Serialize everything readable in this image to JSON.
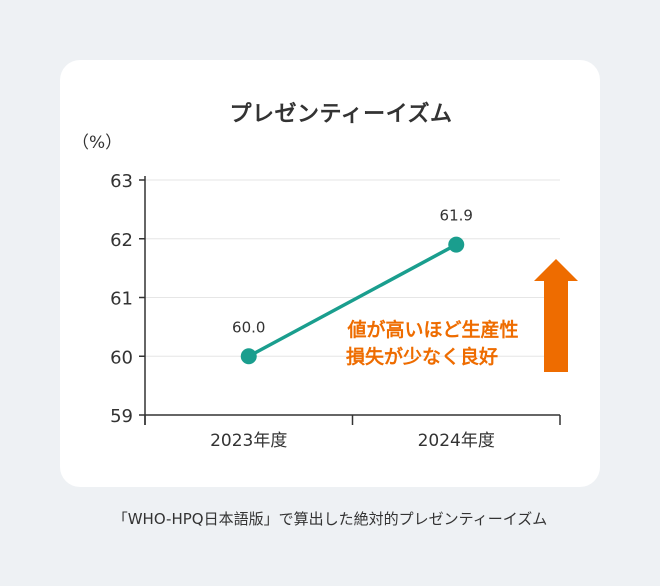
{
  "chart_data": {
    "type": "line",
    "title": "プレゼンティーイズム",
    "ylabel": "（%）",
    "categories": [
      "2023年度",
      "2024年度"
    ],
    "series": [
      {
        "values": [
          60.0,
          61.9
        ],
        "labels": [
          "60.0",
          "61.9"
        ],
        "color": "#1a9e8e"
      }
    ],
    "ylim": [
      59,
      63
    ],
    "yticks": [
      "59",
      "60",
      "61",
      "62",
      "63"
    ],
    "grid": true,
    "annotation": {
      "lines": [
        "値が高いほど生産性",
        "損失が少なく良好"
      ],
      "color": "#ee6c00",
      "arrow": "up-arrow"
    }
  },
  "footer": {
    "source": "「WHO-HPQ日本語版」で算出した絶対的プレゼンティーイズム"
  },
  "colors": {
    "background": "#eef1f4",
    "card": "#ffffff",
    "line": "#1a9e8e",
    "accent": "#ee6c00",
    "text": "#333333",
    "grid": "#e6e6e6"
  }
}
